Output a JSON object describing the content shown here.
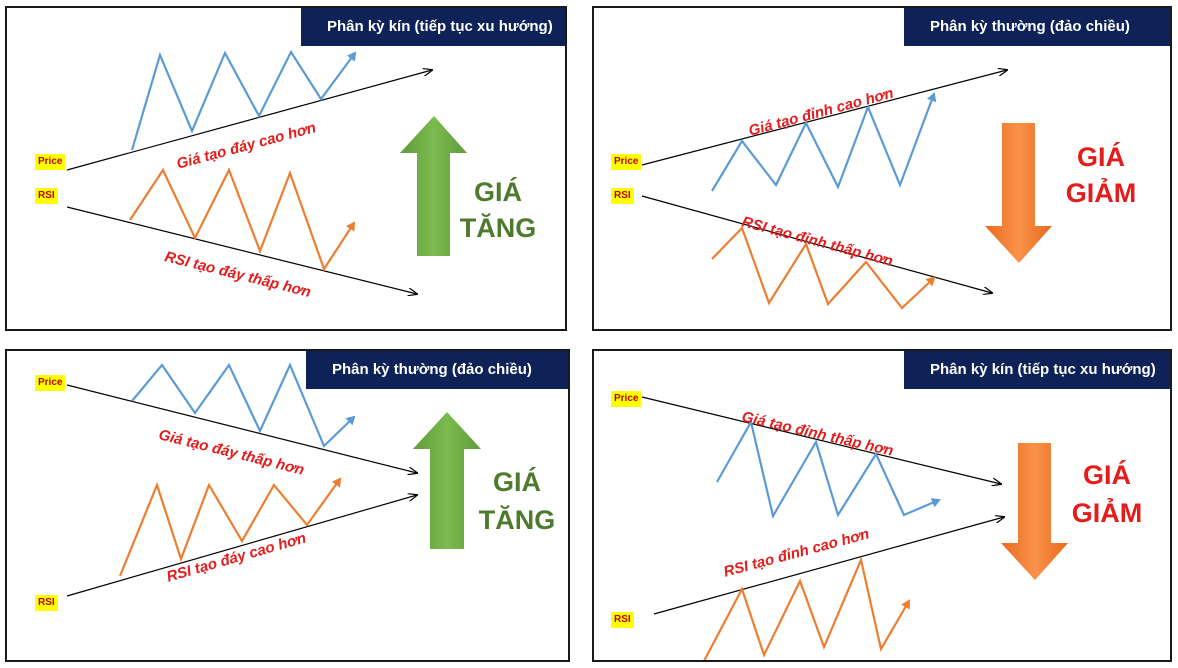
{
  "labels": {
    "price": "Price",
    "rsi": "RSI"
  },
  "colors": {
    "title_bg": "#0e2257",
    "price_line": "#5b9bd5",
    "rsi_line": "#ed7d31",
    "up_arrow": "#6aa84f",
    "down_arrow": "#f07a22",
    "annotation": "#e41c1c"
  },
  "panels": [
    {
      "title": "Phân kỳ kín (tiếp tục xu hướng)",
      "price_note": "Giá tạo đáy cao hơn",
      "rsi_note": "RSI tạo đáy thấp hơn",
      "signal_line1": "GIÁ",
      "signal_line2": "TĂNG",
      "arrow": "up-arrow"
    },
    {
      "title": "Phân kỳ thường (đảo chiều)",
      "price_note": "Giá tạo đỉnh cao hơn",
      "rsi_note": "RSI tạo đỉnh thấp hơn",
      "signal_line1": "GIÁ",
      "signal_line2": "GIẢM",
      "arrow": "down-arrow"
    },
    {
      "title": "Phân kỳ thường (đảo chiều)",
      "price_note": "Giá tạo đáy thấp hơn",
      "rsi_note": "RSI tạo đáy cao hơn",
      "signal_line1": "GIÁ",
      "signal_line2": "TĂNG",
      "arrow": "up-arrow"
    },
    {
      "title": "Phân kỳ kín (tiếp tục xu hướng)",
      "price_note": "Giá tạo đỉnh thấp hơn",
      "rsi_note": "RSI tạo đỉnh cao hơn",
      "signal_line1": "GIÁ",
      "signal_line2": "GIẢM",
      "arrow": "down-arrow"
    }
  ]
}
